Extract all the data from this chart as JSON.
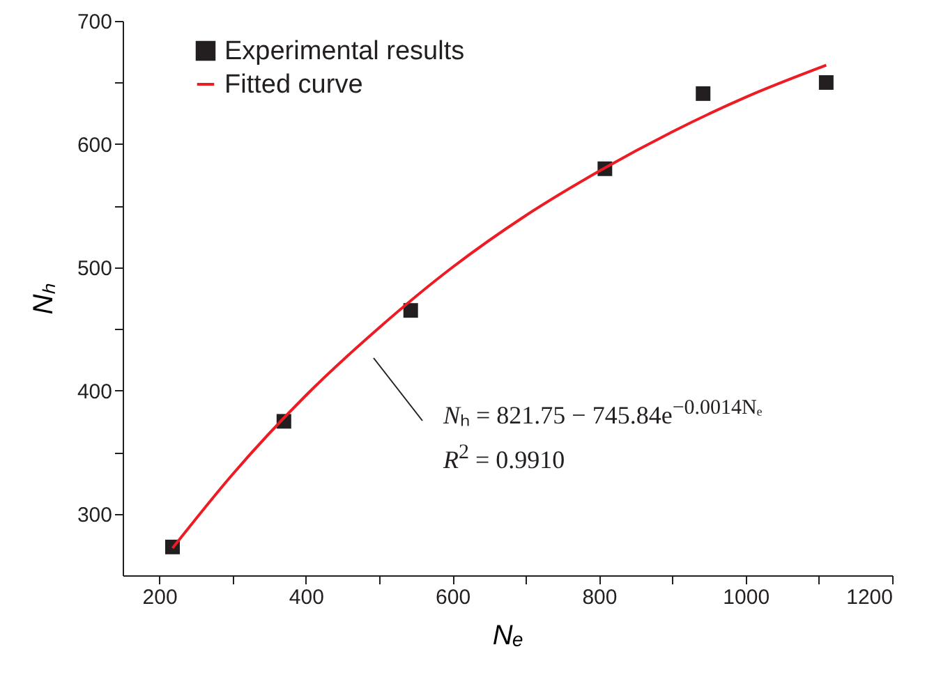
{
  "chart_data": {
    "type": "scatter",
    "xlabel": "Nₑ",
    "ylabel": "Nₕ",
    "xlim": [
      150,
      1200
    ],
    "ylim": [
      250,
      700
    ],
    "xticks": [
      200,
      {
        "value": 300,
        "label": null
      },
      400,
      {
        "value": 500,
        "label": null
      },
      600,
      {
        "value": 700,
        "label": null
      },
      800,
      {
        "value": 900,
        "label": null
      },
      1000,
      {
        "value": 1100,
        "label": null
      },
      1200
    ],
    "yticks": [
      300,
      {
        "value": 350,
        "label": null
      },
      400,
      {
        "value": 450,
        "label": null
      },
      500,
      {
        "value": 550,
        "label": null
      },
      600,
      {
        "value": 650,
        "label": null
      },
      700
    ],
    "grid": false,
    "legend": "top left",
    "series": [
      {
        "name": "Experimental results",
        "marker": "square",
        "color": "#231f20",
        "x": [
          218,
          370,
          543,
          808,
          942,
          1110
        ],
        "values": [
          273,
          375,
          465,
          580,
          641,
          650
        ]
      },
      {
        "name": "Fitted curve",
        "type": "line",
        "color": "#ed1c24",
        "line_style": "solid",
        "x": [
          218,
          300,
          400,
          500,
          600,
          700,
          800,
          900,
          1000,
          1110
        ],
        "values": [
          272,
          332,
          396,
          451,
          500,
          542,
          578,
          610,
          638,
          664
        ]
      }
    ],
    "annotations": [
      "Nₕ = 821.75 − 745.84e$^{−0.0014Nₑ}$",
      "R$^{2}$ = 0.9910"
    ]
  }
}
